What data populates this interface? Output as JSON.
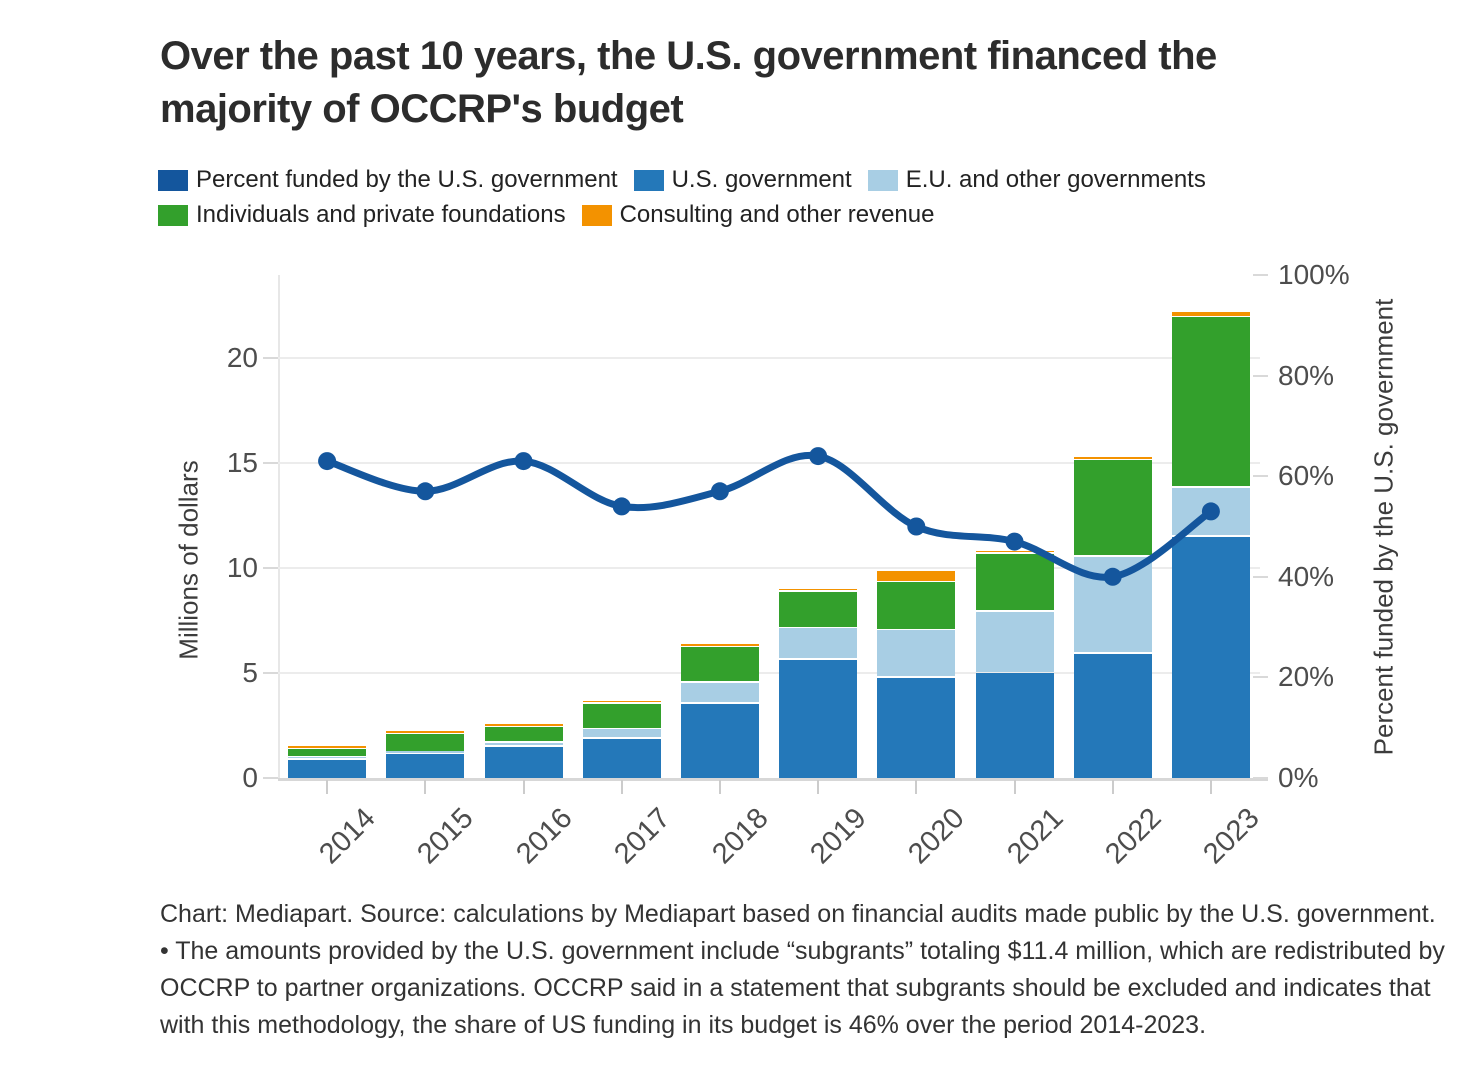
{
  "title": "Over the past 10 years, the U.S. government financed the majority of OCCRP's budget",
  "colors": {
    "dark_blue": "#14569d",
    "blue": "#2478b9",
    "light_blue": "#a8cee4",
    "green": "#33a02c",
    "orange": "#f39200",
    "grid": "#ececec",
    "axis_text": "#4d4d4d"
  },
  "legend": {
    "items": [
      {
        "label": "Percent funded by the U.S. government",
        "color": "dark_blue"
      },
      {
        "label": "U.S. government",
        "color": "blue"
      },
      {
        "label": "E.U. and other governments",
        "color": "light_blue"
      },
      {
        "label": "Individuals and private foundations",
        "color": "green"
      },
      {
        "label": "Consulting and other revenue",
        "color": "orange"
      }
    ]
  },
  "chart_data": {
    "type": "bar",
    "subtype": "stacked-bars-with-line-overlay",
    "categories": [
      "2014",
      "2015",
      "2016",
      "2017",
      "2018",
      "2019",
      "2020",
      "2021",
      "2022",
      "2023"
    ],
    "series": [
      {
        "name": "U.S. government",
        "color": "blue",
        "values": [
          0.95,
          1.2,
          1.55,
          1.95,
          3.6,
          5.7,
          4.85,
          5.05,
          6.0,
          11.55
        ]
      },
      {
        "name": "E.U. and other governments",
        "color": "light_blue",
        "values": [
          0.1,
          0.1,
          0.2,
          0.45,
          1.0,
          1.5,
          2.25,
          2.95,
          4.6,
          2.35
        ]
      },
      {
        "name": "Individuals and private foundations",
        "color": "green",
        "values": [
          0.4,
          0.85,
          0.75,
          1.2,
          1.7,
          1.75,
          2.3,
          2.75,
          4.6,
          8.1
        ]
      },
      {
        "name": "Consulting and other revenue",
        "color": "orange",
        "values": [
          0.1,
          0.12,
          0.13,
          0.12,
          0.1,
          0.05,
          0.55,
          0.1,
          0.1,
          0.25
        ]
      }
    ],
    "totals": [
      1.55,
      2.27,
      2.63,
      3.72,
      6.4,
      9.0,
      9.95,
      10.85,
      15.3,
      22.25
    ],
    "line_series": {
      "name": "Percent funded by the U.S. government",
      "color": "dark_blue",
      "axis": "right",
      "unit": "%",
      "values": [
        63,
        57,
        63,
        54,
        57,
        64,
        50,
        47,
        40,
        53
      ]
    },
    "left_axis": {
      "label": "Millions of dollars",
      "ticks": [
        0,
        5,
        10,
        15,
        20
      ],
      "max": 23.95
    },
    "right_axis": {
      "label": "Percent funded by the U.S. government",
      "tick_values": [
        0,
        20,
        40,
        60,
        80,
        100
      ],
      "tick_labels": [
        "0%",
        "20%",
        "40%",
        "60%",
        "80%",
        "100%"
      ],
      "max": 100
    },
    "grid": "horizontal",
    "legend_position": "top"
  },
  "caption": "Chart: Mediapart. Source: calculations by Mediapart based on financial audits made public by the U.S. government. • The amounts provided by the U.S. government include “subgrants” totaling $11.4 million, which are redistributed by OCCRP to partner organizations. OCCRP said in a statement that subgrants should be excluded and indicates that with this methodology, the share of US funding in its budget is 46% over the period 2014-2023."
}
